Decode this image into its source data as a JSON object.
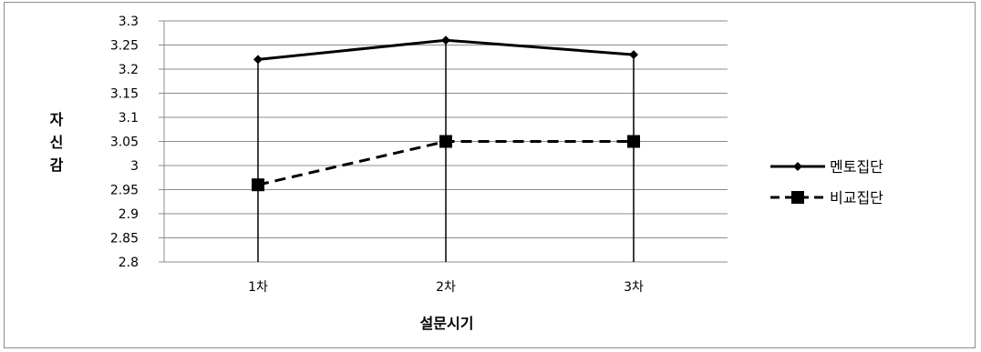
{
  "chart_data": {
    "type": "line",
    "title": "",
    "xlabel": "설문시기",
    "ylabel": "자신감",
    "categories": [
      "1차",
      "2차",
      "3차"
    ],
    "ylim": [
      2.8,
      3.3
    ],
    "yticks": [
      "3.3",
      "3.25",
      "3.2",
      "3.15",
      "3.1",
      "3.05",
      "3",
      "2.95",
      "2.9",
      "2.85",
      "2.8"
    ],
    "grid": true,
    "legend_position": "right",
    "series": [
      {
        "name": "멘토집단",
        "values": [
          3.22,
          3.26,
          3.23
        ],
        "marker": "diamond",
        "line": "solid",
        "color": "#000000"
      },
      {
        "name": "비교집단",
        "values": [
          2.96,
          3.05,
          3.05
        ],
        "marker": "square",
        "line": "dashed",
        "color": "#000000"
      }
    ]
  }
}
